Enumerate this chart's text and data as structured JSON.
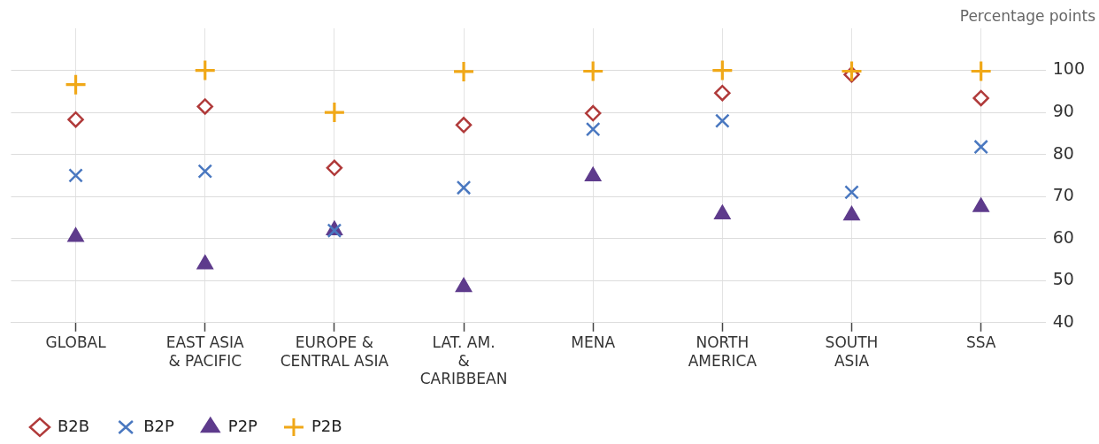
{
  "chart_data": {
    "type": "scatter",
    "ylabel": "Percentage points",
    "categories": [
      "GLOBAL",
      "EAST ASIA\n& PACIFIC",
      "EUROPE &\nCENTRAL ASIA",
      "LAT. AM.\n&\nCARIBBEAN",
      "MENA",
      "NORTH\nAMERICA",
      "SOUTH\nASIA",
      "SSA"
    ],
    "series": [
      {
        "name": "B2B",
        "color": "#b03a3a",
        "marker": "diamond",
        "values": [
          88.3,
          91.4,
          76.8,
          87,
          89.8,
          94.6,
          99,
          93.4
        ]
      },
      {
        "name": "B2P",
        "color": "#4a78c0",
        "values": [
          75,
          76,
          61.9,
          72.1,
          86,
          88,
          71,
          81.8
        ]
      },
      {
        "name": "P2P",
        "color": "#5e3b8c",
        "marker": "triangle",
        "values": [
          60.4,
          53.9,
          62,
          48.5,
          74.8,
          65.8,
          65.5,
          67.5
        ]
      },
      {
        "name": "P2B",
        "color": "#f0a818",
        "marker": "cross",
        "values": [
          96.6,
          100,
          90,
          99.7,
          99.8,
          100,
          99.8,
          99.8
        ]
      }
    ],
    "ylim": [
      40,
      110
    ],
    "yticks": [
      40,
      50,
      60,
      70,
      80,
      90,
      100
    ],
    "grid": true,
    "legend": "bottom left"
  }
}
